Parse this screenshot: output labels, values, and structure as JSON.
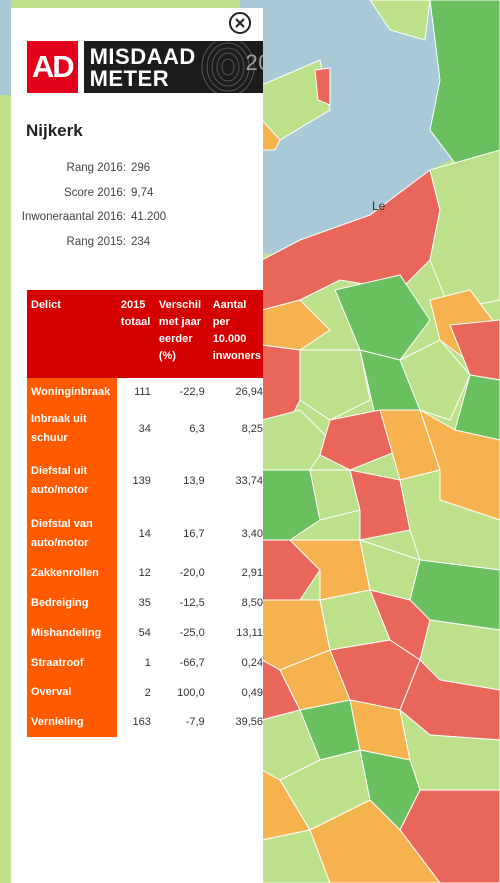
{
  "panel": {
    "close_symbol": "×",
    "municipality": "Nijkerk"
  },
  "brand": {
    "ad": "AD",
    "line1": "MISDAAD",
    "line2": "METER",
    "year_fragment": "20"
  },
  "map": {
    "visible_label": "Le"
  },
  "stats": [
    {
      "label": "Rang 2016:",
      "value": "296"
    },
    {
      "label": "Score 2016:",
      "value": "9,74"
    },
    {
      "label": "Inwoneraantal 2016:",
      "value": "41.200"
    },
    {
      "label": "Rang 2015:",
      "value": "234"
    }
  ],
  "table": {
    "headers": {
      "delict": "Delict",
      "totaal": "2015 totaal",
      "verschil": "Verschil met jaar eerder (%)",
      "aantal": "Aantal per 10.000 inwoners"
    },
    "rows": [
      {
        "delict": "Woninginbraak",
        "totaal": "111",
        "verschil": "-22,9",
        "aantal": "26,94"
      },
      {
        "delict": "Inbraak uit schuur",
        "totaal": "34",
        "verschil": "6,3",
        "aantal": "8,25"
      },
      {
        "delict": "Diefstal uit auto/motor",
        "totaal": "139",
        "verschil": "13,9",
        "aantal": "33,74"
      },
      {
        "delict": "Diefstal van auto/motor",
        "totaal": "14",
        "verschil": "16,7",
        "aantal": "3,40"
      },
      {
        "delict": "Zakkenrollen",
        "totaal": "12",
        "verschil": "-20,0",
        "aantal": "2,91"
      },
      {
        "delict": "Bedreiging",
        "totaal": "35",
        "verschil": "-12,5",
        "aantal": "8,50"
      },
      {
        "delict": "Mishandeling",
        "totaal": "54",
        "verschil": "-25,0",
        "aantal": "13,11"
      },
      {
        "delict": "Straatroof",
        "totaal": "1",
        "verschil": "-66,7",
        "aantal": "0,24"
      },
      {
        "delict": "Overval",
        "totaal": "2",
        "verschil": "100,0",
        "aantal": "0,49"
      },
      {
        "delict": "Vernieling",
        "totaal": "163",
        "verschil": "-7,9",
        "aantal": "39,56"
      }
    ]
  },
  "colors": {
    "header_red": "#d40000",
    "delict_orange": "#ff5a00",
    "ad_red": "#e2001a",
    "map_water": "#aac9d6",
    "map_green_dark": "#6abf5e",
    "map_green_light": "#bde08a",
    "map_orange": "#f6b24e",
    "map_red": "#e9675a"
  }
}
